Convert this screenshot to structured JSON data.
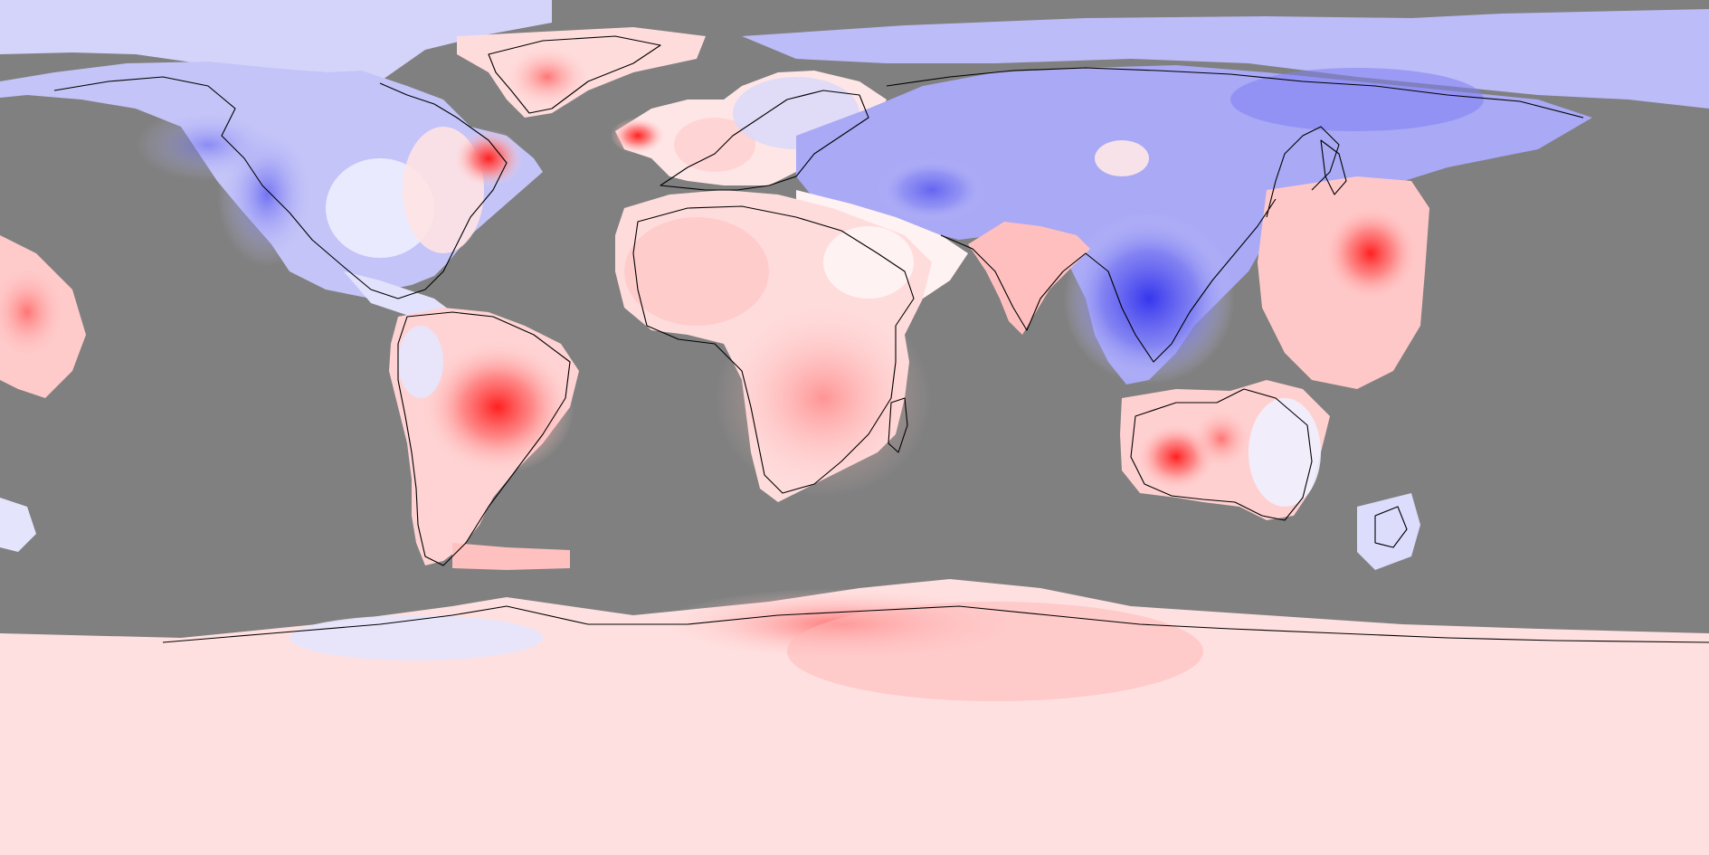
{
  "map": {
    "projection": "equirectangular",
    "ocean_mask_color": "#808080",
    "coastline_color": "#000000",
    "palette": {
      "strong_cold": "#3f3ff0",
      "cold": "#8f8ff4",
      "mild_cold": "#c9c9fb",
      "neutral": "#ffffff",
      "mild_warm": "#ffd3d3",
      "warm": "#ff9a9a",
      "strong_warm": "#ff2a2a"
    }
  }
}
